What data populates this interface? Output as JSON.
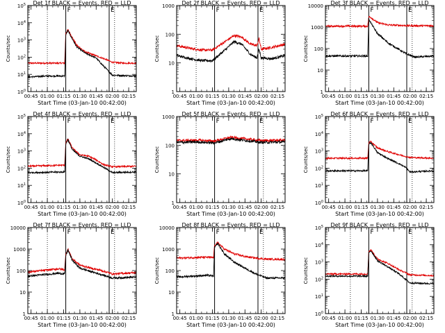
{
  "figure": {
    "colors": {
      "events": "#000000",
      "lld": "#e00000"
    }
  },
  "chart_data": [
    {
      "type": "line",
      "title": "Det 1f BLACK = Events, RED = LLD",
      "xlabel": "Start Time (03-Jan-10 00:42:00)",
      "ylabel": "Counts/sec",
      "yscale": "log",
      "ylim": [
        1,
        100000
      ],
      "yticks": [
        1,
        10,
        100,
        1000,
        10000,
        100000
      ],
      "ytick_labels": [
        {
          "b": "10",
          "e": "0"
        },
        {
          "b": "10",
          "e": "1"
        },
        {
          "b": "10",
          "e": "2"
        },
        {
          "b": "10",
          "e": "3"
        },
        {
          "b": "10",
          "e": "4"
        },
        {
          "b": "10",
          "e": "5"
        }
      ],
      "xlim": [
        "00:42",
        "02:22"
      ],
      "xticks": [
        "00:45",
        "01:00",
        "01:15",
        "01:30",
        "01:45",
        "02:00",
        "02:15"
      ],
      "flag_lines": [
        {
          "x": "01:17",
          "label": "F",
          "style": "solid"
        },
        {
          "x": "01:57",
          "label": "E",
          "style": "solid"
        }
      ],
      "dotted_lines": [
        "01:00",
        "02:02"
      ],
      "series": [
        {
          "key": "lld",
          "x": [
            "00:42",
            "01:16",
            "01:17",
            "01:19",
            "01:22",
            "01:27",
            "01:35",
            "01:45",
            "01:55",
            "02:00",
            "02:10",
            "02:22"
          ],
          "y": [
            45,
            45,
            2500,
            4000,
            1800,
            500,
            200,
            120,
            70,
            50,
            45,
            45
          ]
        },
        {
          "key": "events",
          "x": [
            "00:42",
            "01:00",
            "01:16",
            "01:17",
            "01:19",
            "01:22",
            "01:27",
            "01:35",
            "01:45",
            "01:50",
            "02:00",
            "02:22"
          ],
          "y": [
            7,
            8,
            8,
            2000,
            3500,
            1500,
            400,
            170,
            90,
            40,
            9,
            8
          ]
        }
      ]
    },
    {
      "type": "line",
      "title": "Det 2f BLACK = Events, RED = LLD",
      "xlabel": "Start Time (03-Jan-10 00:42:00)",
      "ylabel": "Counts/sec",
      "yscale": "log",
      "ylim": [
        1,
        1000
      ],
      "yticks": [
        1,
        10,
        100,
        1000
      ],
      "ytick_labels": [
        "1",
        "10",
        "100",
        "1000"
      ],
      "xlim": [
        "00:42",
        "02:22"
      ],
      "xticks": [
        "00:45",
        "01:00",
        "01:15",
        "01:30",
        "01:45",
        "02:00",
        "02:15"
      ],
      "flag_lines": [
        {
          "x": "01:17",
          "label": "F",
          "style": "solid"
        },
        {
          "x": "01:57",
          "label": "E",
          "style": "solid"
        }
      ],
      "dotted_lines": [
        "01:00",
        "02:02"
      ],
      "series": [
        {
          "key": "lld",
          "x": [
            "00:42",
            "00:55",
            "01:05",
            "01:15",
            "01:25",
            "01:35",
            "01:42",
            "01:50",
            "01:56",
            "01:58",
            "02:00",
            "02:10",
            "02:22"
          ],
          "y": [
            40,
            32,
            28,
            28,
            50,
            90,
            80,
            45,
            40,
            70,
            30,
            35,
            45
          ]
        },
        {
          "key": "events",
          "x": [
            "00:42",
            "00:55",
            "01:05",
            "01:15",
            "01:25",
            "01:35",
            "01:42",
            "01:50",
            "01:56",
            "01:58",
            "02:00",
            "02:10",
            "02:22"
          ],
          "y": [
            18,
            14,
            12,
            12,
            25,
            55,
            45,
            20,
            15,
            30,
            15,
            14,
            18
          ]
        }
      ]
    },
    {
      "type": "line",
      "title": "Det 3f BLACK = Events, RED = LLD",
      "xlabel": "Start Time (03-Jan-10 00:42:00)",
      "ylabel": "Counts/sec",
      "yscale": "log",
      "ylim": [
        1,
        10000
      ],
      "yticks": [
        1,
        10,
        100,
        1000,
        10000
      ],
      "ytick_labels": [
        "1",
        "10",
        "100",
        "1000",
        "10000"
      ],
      "xlim": [
        "00:42",
        "02:22"
      ],
      "xticks": [
        "00:45",
        "01:00",
        "01:15",
        "01:30",
        "01:45",
        "02:00",
        "02:15"
      ],
      "flag_lines": [
        {
          "x": "01:22",
          "label": "F",
          "style": "solid"
        },
        {
          "x": "01:57",
          "label": "E",
          "style": "solid"
        }
      ],
      "dotted_lines": [
        "01:05",
        "02:02"
      ],
      "series": [
        {
          "key": "lld",
          "x": [
            "00:42",
            "01:21",
            "01:22",
            "01:24",
            "01:30",
            "01:40",
            "01:50",
            "02:00",
            "02:22"
          ],
          "y": [
            1100,
            1100,
            3000,
            2800,
            1600,
            1250,
            1200,
            1150,
            1150
          ]
        },
        {
          "key": "events",
          "x": [
            "00:42",
            "01:21",
            "01:22",
            "01:24",
            "01:30",
            "01:40",
            "01:50",
            "01:57",
            "02:05",
            "02:22"
          ],
          "y": [
            45,
            45,
            2500,
            1500,
            500,
            180,
            90,
            55,
            40,
            45
          ]
        }
      ]
    },
    {
      "type": "line",
      "title": "Det 4f BLACK = Events, RED = LLD",
      "xlabel": "Start Time (03-Jan-10 00:42:00)",
      "ylabel": "Counts/sec",
      "yscale": "log",
      "ylim": [
        1,
        100000
      ],
      "yticks": [
        1,
        10,
        100,
        1000,
        10000,
        100000
      ],
      "ytick_labels": [
        {
          "b": "10",
          "e": "0"
        },
        {
          "b": "10",
          "e": "1"
        },
        {
          "b": "10",
          "e": "2"
        },
        {
          "b": "10",
          "e": "3"
        },
        {
          "b": "10",
          "e": "4"
        },
        {
          "b": "10",
          "e": "5"
        }
      ],
      "xlim": [
        "00:42",
        "02:22"
      ],
      "xticks": [
        "00:45",
        "01:00",
        "01:15",
        "01:30",
        "01:45",
        "02:00",
        "02:15"
      ],
      "flag_lines": [
        {
          "x": "01:17",
          "label": "F",
          "style": "solid"
        },
        {
          "x": "01:57",
          "label": "E",
          "style": "solid"
        }
      ],
      "dotted_lines": [
        "01:00",
        "02:02"
      ],
      "series": [
        {
          "key": "lld",
          "x": [
            "00:42",
            "01:16",
            "01:17",
            "01:19",
            "01:23",
            "01:30",
            "01:38",
            "01:45",
            "01:52",
            "02:00",
            "02:22"
          ],
          "y": [
            130,
            150,
            3000,
            5000,
            1500,
            600,
            500,
            300,
            160,
            120,
            130
          ]
        },
        {
          "key": "events",
          "x": [
            "00:42",
            "01:16",
            "01:17",
            "01:19",
            "01:23",
            "01:30",
            "01:38",
            "01:45",
            "01:52",
            "02:00",
            "02:22"
          ],
          "y": [
            55,
            60,
            2500,
            4500,
            1200,
            500,
            350,
            200,
            110,
            55,
            60
          ]
        }
      ]
    },
    {
      "type": "line",
      "title": "Det 5f BLACK = Events, RED = LLD",
      "xlabel": "Start Time (03-Jan-10 00:42:00)",
      "ylabel": "Counts/sec",
      "yscale": "log",
      "ylim": [
        1,
        1000
      ],
      "yticks": [
        1,
        10,
        100,
        1000
      ],
      "ytick_labels": [
        "1",
        "10",
        "100",
        "1000"
      ],
      "xlim": [
        "00:42",
        "02:22"
      ],
      "xticks": [
        "00:45",
        "01:00",
        "01:15",
        "01:30",
        "01:45",
        "02:00",
        "02:15"
      ],
      "flag_lines": [
        {
          "x": "01:17",
          "label": "F",
          "style": "solid"
        },
        {
          "x": "01:57",
          "label": "E",
          "style": "solid"
        }
      ],
      "dotted_lines": [
        "01:00",
        "02:02"
      ],
      "series": [
        {
          "key": "lld",
          "x": [
            "00:42",
            "01:00",
            "01:17",
            "01:25",
            "01:32",
            "01:40",
            "01:50",
            "02:00",
            "02:22"
          ],
          "y": [
            145,
            150,
            140,
            165,
            190,
            175,
            160,
            145,
            150
          ]
        },
        {
          "key": "events",
          "x": [
            "00:42",
            "01:00",
            "01:17",
            "01:25",
            "01:32",
            "01:40",
            "01:50",
            "02:00",
            "02:22"
          ],
          "y": [
            125,
            130,
            120,
            145,
            170,
            155,
            140,
            125,
            130
          ]
        }
      ]
    },
    {
      "type": "line",
      "title": "Det 6f BLACK = Events, RED = LLD",
      "xlabel": "Start Time (03-Jan-10 00:42:00)",
      "ylabel": "Counts/sec",
      "yscale": "log",
      "ylim": [
        1,
        100000
      ],
      "yticks": [
        1,
        10,
        100,
        1000,
        10000,
        100000
      ],
      "ytick_labels": [
        {
          "b": "10",
          "e": "0"
        },
        {
          "b": "10",
          "e": "1"
        },
        {
          "b": "10",
          "e": "2"
        },
        {
          "b": "10",
          "e": "3"
        },
        {
          "b": "10",
          "e": "4"
        },
        {
          "b": "10",
          "e": "5"
        }
      ],
      "xlim": [
        "00:42",
        "02:22"
      ],
      "xticks": [
        "00:45",
        "01:00",
        "01:15",
        "01:30",
        "01:45",
        "02:00",
        "02:15"
      ],
      "flag_lines": [
        {
          "x": "01:22",
          "label": "F",
          "style": "solid"
        },
        {
          "x": "01:57",
          "label": "E",
          "style": "solid"
        }
      ],
      "dotted_lines": [
        "01:05",
        "02:02"
      ],
      "series": [
        {
          "key": "lld",
          "x": [
            "00:42",
            "01:21",
            "01:22",
            "01:24",
            "01:30",
            "01:40",
            "01:50",
            "02:00",
            "02:22"
          ],
          "y": [
            380,
            380,
            3000,
            3500,
            1500,
            900,
            600,
            420,
            380
          ]
        },
        {
          "key": "events",
          "x": [
            "00:42",
            "01:21",
            "01:22",
            "01:24",
            "01:30",
            "01:40",
            "01:50",
            "01:56",
            "02:00",
            "02:22"
          ],
          "y": [
            70,
            70,
            2500,
            3000,
            800,
            350,
            180,
            110,
            60,
            70
          ]
        }
      ]
    },
    {
      "type": "line",
      "title": "Det 7f BLACK = Events, RED = LLD",
      "xlabel": "Start Time (03-Jan-10 00:42:00)",
      "ylabel": "Counts/sec",
      "yscale": "log",
      "ylim": [
        1,
        10000
      ],
      "yticks": [
        1,
        10,
        100,
        1000,
        10000
      ],
      "ytick_labels": [
        "1",
        "10",
        "100",
        "1000",
        "10000"
      ],
      "xlim": [
        "00:42",
        "02:22"
      ],
      "xticks": [
        "00:45",
        "01:00",
        "01:15",
        "01:30",
        "01:45",
        "02:00",
        "02:15"
      ],
      "flag_lines": [
        {
          "x": "01:17",
          "label": "F",
          "style": "solid"
        },
        {
          "x": "01:57",
          "label": "E",
          "style": "solid"
        }
      ],
      "dotted_lines": [
        "01:00",
        "02:02"
      ],
      "series": [
        {
          "key": "lld",
          "x": [
            "00:42",
            "01:10",
            "01:16",
            "01:17",
            "01:19",
            "01:23",
            "01:30",
            "01:40",
            "01:50",
            "02:00",
            "02:22"
          ],
          "y": [
            85,
            120,
            110,
            600,
            1000,
            350,
            180,
            130,
            100,
            70,
            80
          ]
        },
        {
          "key": "events",
          "x": [
            "00:42",
            "01:10",
            "01:16",
            "01:17",
            "01:19",
            "01:23",
            "01:30",
            "01:40",
            "01:50",
            "02:00",
            "02:22"
          ],
          "y": [
            55,
            75,
            70,
            500,
            900,
            300,
            130,
            90,
            65,
            45,
            50
          ]
        }
      ]
    },
    {
      "type": "line",
      "title": "Det 8f BLACK = Events, RED = LLD",
      "xlabel": "Start Time (03-Jan-10 00:42:00)",
      "ylabel": "Counts/sec",
      "yscale": "log",
      "ylim": [
        1,
        10000
      ],
      "yticks": [
        1,
        10,
        100,
        1000,
        10000
      ],
      "ytick_labels": [
        "1",
        "10",
        "100",
        "1000",
        "10000"
      ],
      "xlim": [
        "00:42",
        "02:22"
      ],
      "xticks": [
        "00:45",
        "01:00",
        "01:15",
        "01:30",
        "01:45",
        "02:00",
        "02:15"
      ],
      "flag_lines": [
        {
          "x": "01:17",
          "label": "F",
          "style": "solid"
        },
        {
          "x": "01:57",
          "label": "E",
          "style": "solid"
        }
      ],
      "dotted_lines": [
        "01:00",
        "02:02"
      ],
      "series": [
        {
          "key": "lld",
          "x": [
            "00:42",
            "01:10",
            "01:16",
            "01:17",
            "01:20",
            "01:26",
            "01:35",
            "01:45",
            "01:55",
            "02:05",
            "02:22"
          ],
          "y": [
            380,
            420,
            400,
            1500,
            2000,
            1000,
            600,
            450,
            380,
            340,
            330
          ]
        },
        {
          "key": "events",
          "x": [
            "00:42",
            "01:10",
            "01:16",
            "01:17",
            "01:20",
            "01:26",
            "01:35",
            "01:45",
            "01:55",
            "02:05",
            "02:22"
          ],
          "y": [
            50,
            60,
            55,
            1200,
            1800,
            600,
            250,
            130,
            70,
            45,
            45
          ]
        }
      ]
    },
    {
      "type": "line",
      "title": "Det 9f BLACK = Events, RED = LLD",
      "xlabel": "Start Time (03-Jan-10 00:42:00)",
      "ylabel": "Counts/sec",
      "yscale": "log",
      "ylim": [
        1,
        100000
      ],
      "yticks": [
        1,
        10,
        100,
        1000,
        10000,
        100000
      ],
      "ytick_labels": [
        {
          "b": "10",
          "e": "0"
        },
        {
          "b": "10",
          "e": "1"
        },
        {
          "b": "10",
          "e": "2"
        },
        {
          "b": "10",
          "e": "3"
        },
        {
          "b": "10",
          "e": "4"
        },
        {
          "b": "10",
          "e": "5"
        }
      ],
      "xlim": [
        "00:42",
        "02:22"
      ],
      "xticks": [
        "00:45",
        "01:00",
        "01:15",
        "01:30",
        "01:45",
        "02:00",
        "02:15"
      ],
      "flag_lines": [
        {
          "x": "01:22",
          "label": "F",
          "style": "solid"
        },
        {
          "x": "01:57",
          "label": "E",
          "style": "solid"
        }
      ],
      "dotted_lines": [
        "01:05",
        "02:02"
      ],
      "series": [
        {
          "key": "lld",
          "x": [
            "00:42",
            "01:21",
            "01:22",
            "01:24",
            "01:30",
            "01:40",
            "01:50",
            "02:00",
            "02:22"
          ],
          "y": [
            200,
            200,
            4000,
            5000,
            1500,
            800,
            350,
            180,
            160
          ]
        },
        {
          "key": "events",
          "x": [
            "00:42",
            "01:21",
            "01:22",
            "01:24",
            "01:30",
            "01:40",
            "01:50",
            "02:00",
            "02:22"
          ],
          "y": [
            150,
            150,
            3500,
            4500,
            1200,
            500,
            200,
            60,
            55
          ]
        }
      ]
    }
  ]
}
